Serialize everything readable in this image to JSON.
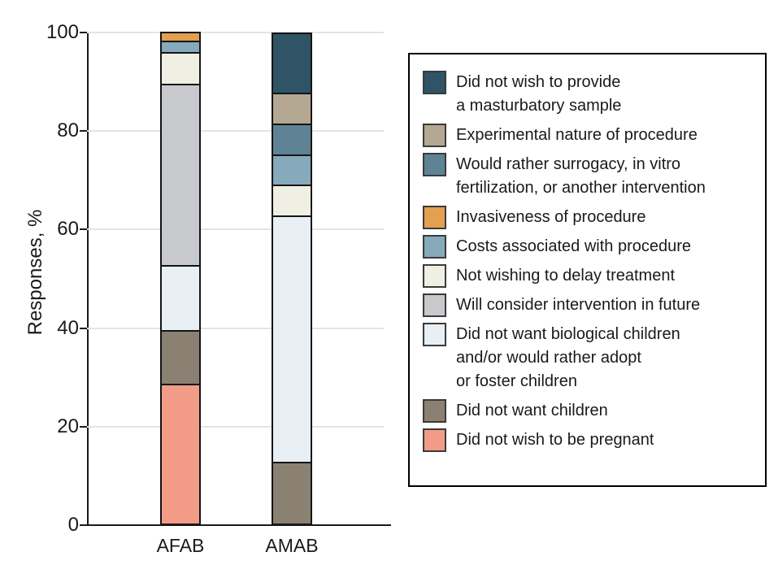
{
  "chart_data": {
    "type": "stacked-bar",
    "title": "",
    "xlabel": "",
    "ylabel": "Responses, %",
    "ylim": [
      0,
      100
    ],
    "yticks": [
      0,
      20,
      40,
      60,
      80,
      100
    ],
    "grid": true,
    "legend_position": "right",
    "categories": [
      "AFAB",
      "AMAB"
    ],
    "series": [
      {
        "name": "Did not wish to provide a masturbatory sample",
        "color": "#2F5466",
        "values": [
          0,
          12.5
        ]
      },
      {
        "name": "Experimental nature of procedure",
        "color": "#B4A892",
        "values": [
          0,
          6.25
        ]
      },
      {
        "name": "Would rather surrogacy, in vitro fertilization, or another intervention",
        "color": "#5F8395",
        "values": [
          0,
          6.25
        ]
      },
      {
        "name": "Invasiveness of procedure",
        "color": "#E3A04F",
        "values": [
          2.2,
          0
        ]
      },
      {
        "name": "Costs associated with procedure",
        "color": "#86A9BC",
        "values": [
          2.2,
          6.25
        ]
      },
      {
        "name": "Not wishing to delay treatment",
        "color": "#F0EFE3",
        "values": [
          6.5,
          6.25
        ]
      },
      {
        "name": "Will consider intervention in future",
        "color": "#C8C9CC",
        "values": [
          36.9,
          0
        ]
      },
      {
        "name": "Did not want biological children and/or would rather adopt or foster children",
        "color": "#E8F0F5",
        "values": [
          13.1,
          50
        ]
      },
      {
        "name": "Did not want children",
        "color": "#8A8173",
        "values": [
          10.9,
          12.5
        ]
      },
      {
        "name": "Did not wish to be pregnant",
        "color": "#F29B87",
        "values": [
          28.4,
          0
        ]
      }
    ]
  },
  "legend": {
    "items": [
      {
        "label": "Did not wish to provide\na masturbatory sample"
      },
      {
        "label": "Experimental nature of procedure"
      },
      {
        "label": "Would rather surrogacy, in vitro\nfertilization, or another intervention"
      },
      {
        "label": "Invasiveness of procedure"
      },
      {
        "label": "Costs associated with procedure"
      },
      {
        "label": "Not wishing to delay treatment"
      },
      {
        "label": "Will consider intervention in future"
      },
      {
        "label": "Did not want biological children\nand/or would rather adopt\nor foster children"
      },
      {
        "label": "Did not want children"
      },
      {
        "label": "Did not wish to be pregnant"
      }
    ]
  },
  "colors": {
    "axis": "#1a1a1a",
    "gridline": "#e4e4e4",
    "segment_border": "#141414",
    "legend_border": "#000000"
  }
}
